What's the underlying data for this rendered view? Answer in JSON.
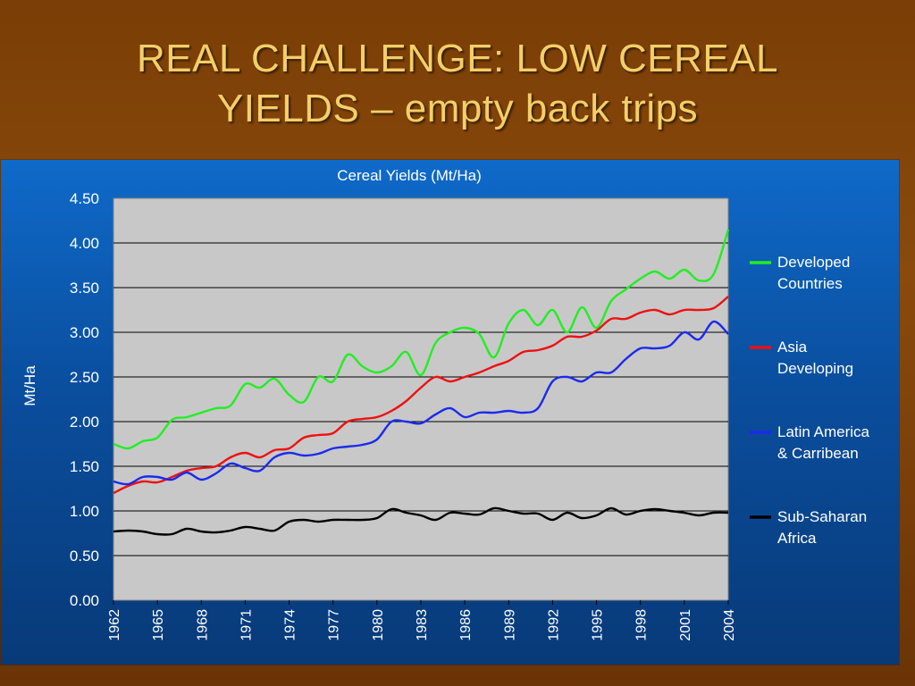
{
  "slide": {
    "title_line1": "REAL CHALLENGE: LOW CEREAL",
    "title_line2": "YIELDS – empty back trips"
  },
  "chart_data": {
    "type": "line",
    "title": "Cereal Yields (Mt/Ha)",
    "xlabel": "",
    "ylabel": "Mt/Ha",
    "ylim": [
      0,
      4.5
    ],
    "yticks": [
      "0.00",
      "0.50",
      "1.00",
      "1.50",
      "2.00",
      "2.50",
      "3.00",
      "3.50",
      "4.00",
      "4.50"
    ],
    "xticks": [
      "1962",
      "1965",
      "1968",
      "1971",
      "1974",
      "1977",
      "1980",
      "1983",
      "1986",
      "1989",
      "1992",
      "1995",
      "1998",
      "2001",
      "2004"
    ],
    "grid": true,
    "legend_position": "right",
    "x": [
      1962,
      1963,
      1964,
      1965,
      1966,
      1967,
      1968,
      1969,
      1970,
      1971,
      1972,
      1973,
      1974,
      1975,
      1976,
      1977,
      1978,
      1979,
      1980,
      1981,
      1982,
      1983,
      1984,
      1985,
      1986,
      1987,
      1988,
      1989,
      1990,
      1991,
      1992,
      1993,
      1994,
      1995,
      1996,
      1997,
      1998,
      1999,
      2000,
      2001,
      2002,
      2003,
      2004
    ],
    "series": [
      {
        "name_lines": [
          "Developed",
          "Countries"
        ],
        "color": "#22ee22",
        "values": [
          1.75,
          1.7,
          1.78,
          1.82,
          2.02,
          2.05,
          2.1,
          2.15,
          2.18,
          2.42,
          2.38,
          2.48,
          2.3,
          2.22,
          2.5,
          2.45,
          2.75,
          2.62,
          2.55,
          2.62,
          2.78,
          2.52,
          2.88,
          3.0,
          3.05,
          2.98,
          2.72,
          3.1,
          3.25,
          3.08,
          3.25,
          3.0,
          3.28,
          3.05,
          3.35,
          3.48,
          3.6,
          3.68,
          3.6,
          3.7,
          3.58,
          3.65,
          4.15
        ]
      },
      {
        "name_lines": [
          "Asia",
          "Developing"
        ],
        "color": "#ee1111",
        "values": [
          1.2,
          1.28,
          1.33,
          1.32,
          1.38,
          1.45,
          1.48,
          1.5,
          1.6,
          1.65,
          1.6,
          1.68,
          1.7,
          1.82,
          1.85,
          1.87,
          2.0,
          2.03,
          2.05,
          2.12,
          2.23,
          2.38,
          2.5,
          2.45,
          2.5,
          2.55,
          2.62,
          2.68,
          2.78,
          2.8,
          2.85,
          2.95,
          2.95,
          3.02,
          3.15,
          3.15,
          3.22,
          3.25,
          3.2,
          3.25,
          3.25,
          3.27,
          3.4
        ]
      },
      {
        "name_lines": [
          "Latin America",
          "& Carribean"
        ],
        "color": "#1a2aee",
        "values": [
          1.33,
          1.3,
          1.38,
          1.38,
          1.35,
          1.43,
          1.35,
          1.42,
          1.53,
          1.48,
          1.45,
          1.6,
          1.65,
          1.62,
          1.64,
          1.7,
          1.72,
          1.74,
          1.8,
          2.0,
          2.0,
          1.98,
          2.08,
          2.15,
          2.05,
          2.1,
          2.1,
          2.12,
          2.1,
          2.15,
          2.45,
          2.5,
          2.45,
          2.55,
          2.55,
          2.7,
          2.82,
          2.82,
          2.85,
          3.0,
          2.92,
          3.12,
          2.98
        ]
      },
      {
        "name_lines": [
          "Sub-Saharan",
          "Africa"
        ],
        "color": "#000000",
        "values": [
          0.77,
          0.78,
          0.77,
          0.74,
          0.74,
          0.8,
          0.77,
          0.76,
          0.78,
          0.82,
          0.8,
          0.78,
          0.88,
          0.9,
          0.88,
          0.9,
          0.9,
          0.9,
          0.92,
          1.02,
          0.98,
          0.95,
          0.9,
          0.98,
          0.97,
          0.96,
          1.03,
          1.0,
          0.97,
          0.97,
          0.9,
          0.98,
          0.92,
          0.95,
          1.03,
          0.96,
          1.0,
          1.02,
          1.0,
          0.98,
          0.95,
          0.98,
          0.98
        ]
      }
    ]
  }
}
